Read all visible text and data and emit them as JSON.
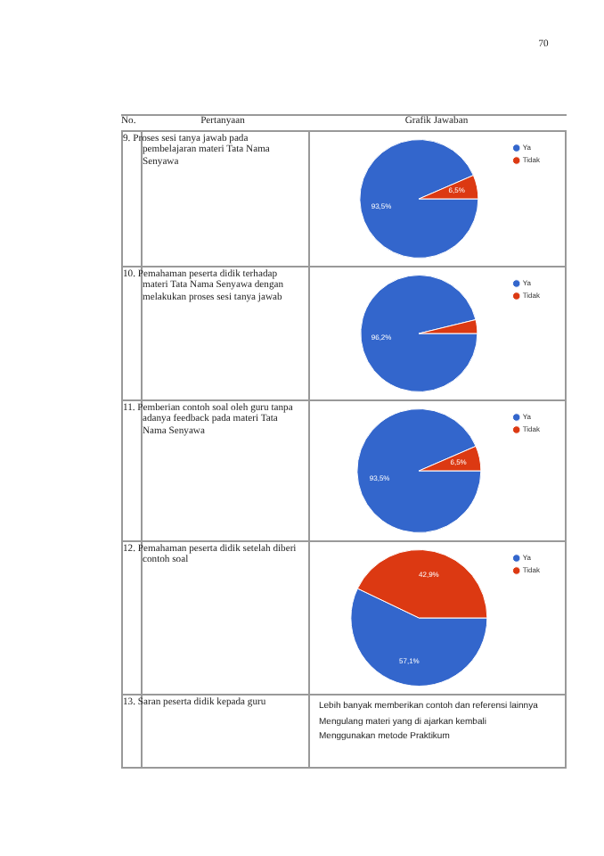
{
  "chart_data": [
    {
      "type": "pie",
      "title": "9. Proses sesi tanya jawab pada pembelajaran materi Tata Nama Senyawa",
      "annotations": [
        "70",
        "No.",
        "Pertanyaan",
        "Grafik Jawaban"
      ],
      "categories": [
        "Ya",
        "Tidak"
      ],
      "values": [
        93.5,
        6.5
      ],
      "colors": [
        "#3366cc",
        "#dc3912"
      ],
      "value_labels": [
        "93,5%",
        "6,5%"
      ],
      "legend": "top right"
    },
    {
      "type": "pie",
      "title": "10. Pemahaman peserta didik terhadap materi Tata Nama Senyawa dengan melakukan proses sesi tanya jawab",
      "categories": [
        "Ya",
        "Tidak"
      ],
      "values": [
        96.2,
        3.8
      ],
      "colors": [
        "#3366cc",
        "#dc3912"
      ],
      "value_labels": [
        "96,2%",
        null
      ],
      "legend": "top right"
    },
    {
      "type": "pie",
      "title": "11. Pemberian contoh soal oleh guru tanpa adanya feedback pada materi Tata Nama Senyawa",
      "categories": [
        "Ya",
        "Tidak"
      ],
      "values": [
        93.5,
        6.5
      ],
      "colors": [
        "#3366cc",
        "#dc3912"
      ],
      "value_labels": [
        "93,5%",
        "6,5%"
      ],
      "legend": "top right"
    },
    {
      "type": "pie",
      "title": "12. Pemahaman peserta didik setelah diberi contoh soal",
      "categories": [
        "Ya",
        "Tidak"
      ],
      "values": [
        57.1,
        42.9
      ],
      "colors": [
        "#3366cc",
        "#dc3912"
      ],
      "value_labels": [
        "57,1%",
        "42,9%"
      ],
      "legend": "top right"
    },
    {
      "type": "other",
      "title": "13. Saran peserta didik kepada guru",
      "annotations": [
        "Lebih banyak memberikan contoh dan referensi lainnya",
        "Mengulang materi yang di ajarkan kembali",
        "Menggunakan metode Praktikum"
      ]
    }
  ]
}
